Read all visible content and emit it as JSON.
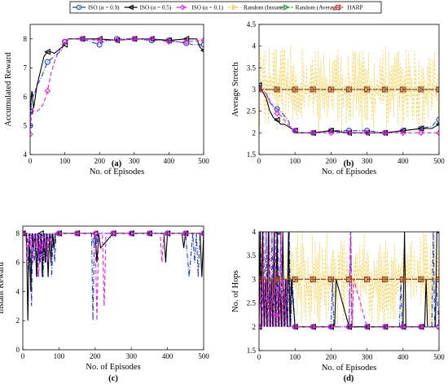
{
  "legend": {
    "entries": [
      {
        "label": "ISO (α = 0.9)",
        "color": "#1f3fd6",
        "marker": "circle",
        "dash": "6,2,1,2"
      },
      {
        "label": "ISO (α = 0.5)",
        "color": "#000000",
        "marker": "triangle-left",
        "dash": ""
      },
      {
        "label": "ISO (α = 0.1)",
        "color": "#e020e0",
        "marker": "diamond",
        "dash": "5,3"
      },
      {
        "label": "Random (Instant)",
        "color": "#f5d04a",
        "marker": "triangle-right",
        "dash": "3,2"
      },
      {
        "label": "Random (Average)",
        "color": "#1a9a2a",
        "marker": "triangle-right",
        "dash": "5,2"
      },
      {
        "label": "HARP",
        "color": "#e02020",
        "marker": "square",
        "dash": "2,2"
      }
    ]
  },
  "chart_data": [
    {
      "type": "line",
      "caption": "(a)",
      "xlabel": "No. of Episodes",
      "ylabel": "Accumulated Reward",
      "xlim": [
        0,
        500
      ],
      "ylim": [
        4,
        8.5
      ],
      "xticks": [
        0,
        100,
        200,
        300,
        400,
        500
      ],
      "yticks": [
        4,
        5,
        6,
        7,
        8
      ],
      "series": [
        {
          "x": [
            0,
            5,
            10,
            20,
            30,
            40,
            50,
            60,
            70,
            80,
            90,
            100,
            110,
            150,
            200,
            210,
            250,
            300,
            350,
            400,
            450,
            470,
            500
          ],
          "y": [
            5.0,
            6.2,
            6.0,
            6.4,
            6.6,
            6.9,
            7.2,
            7.3,
            7.4,
            7.5,
            7.6,
            7.9,
            8.0,
            8.0,
            7.8,
            7.9,
            8.0,
            8.0,
            7.95,
            7.95,
            7.85,
            7.8,
            7.8
          ]
        },
        {
          "x": [
            0,
            5,
            10,
            20,
            30,
            40,
            50,
            60,
            70,
            80,
            100,
            110,
            150,
            200,
            250,
            300,
            350,
            400,
            450,
            480,
            490,
            500
          ],
          "y": [
            5.5,
            6.2,
            5.6,
            6.4,
            6.9,
            7.4,
            7.55,
            7.55,
            7.5,
            7.6,
            7.8,
            8.0,
            8.0,
            8.0,
            7.95,
            8.0,
            8.0,
            7.95,
            8.0,
            8.0,
            7.7,
            7.6
          ]
        },
        {
          "x": [
            0,
            5,
            10,
            20,
            30,
            40,
            50,
            60,
            70,
            80,
            90,
            100,
            110,
            150,
            200,
            250,
            300,
            350,
            400,
            450,
            500
          ],
          "y": [
            4.7,
            5.6,
            5.5,
            5.5,
            5.6,
            5.8,
            6.2,
            6.8,
            7.2,
            7.5,
            7.7,
            7.9,
            8.0,
            8.0,
            7.95,
            7.95,
            8.0,
            8.0,
            7.9,
            7.9,
            7.95
          ]
        }
      ]
    },
    {
      "type": "line",
      "caption": "(b)",
      "xlabel": "No. of Episodes",
      "ylabel": "Average Stretch",
      "xlim": [
        0,
        500
      ],
      "ylim": [
        1.5,
        4.5
      ],
      "xticks": [
        0,
        100,
        200,
        300,
        400,
        500
      ],
      "yticks": [
        1.5,
        2,
        2.5,
        3,
        3.5,
        4,
        4.5
      ],
      "noise": {
        "series_index": 3,
        "min": 2.0,
        "max": 4.0,
        "center": 3.0,
        "samples": 250
      },
      "series": [
        {
          "x": [
            0,
            10,
            20,
            30,
            40,
            50,
            60,
            70,
            80,
            90,
            100,
            110,
            150,
            200,
            250,
            300,
            350,
            400,
            450,
            480,
            490,
            500
          ],
          "y": [
            3.05,
            3.0,
            2.9,
            2.7,
            2.6,
            2.55,
            2.5,
            2.4,
            2.3,
            2.1,
            2.05,
            2.0,
            2.0,
            2.05,
            2.05,
            2.05,
            2.0,
            2.05,
            2.1,
            2.15,
            2.25,
            2.3
          ]
        },
        {
          "x": [
            0,
            10,
            20,
            30,
            40,
            50,
            60,
            70,
            80,
            90,
            100,
            110,
            150,
            200,
            250,
            300,
            350,
            400,
            450,
            480,
            490,
            500
          ],
          "y": [
            3.1,
            2.95,
            2.8,
            2.5,
            2.35,
            2.3,
            2.2,
            2.2,
            2.15,
            2.1,
            2.05,
            2.0,
            2.0,
            2.05,
            2.0,
            2.0,
            2.0,
            2.05,
            2.1,
            2.1,
            2.15,
            2.2
          ]
        },
        {
          "x": [
            0,
            10,
            20,
            30,
            40,
            50,
            60,
            70,
            80,
            90,
            100,
            110,
            150,
            200,
            250,
            300,
            350,
            400,
            450,
            500
          ],
          "y": [
            3.0,
            2.95,
            2.9,
            2.75,
            2.6,
            2.45,
            2.4,
            2.3,
            2.2,
            2.1,
            2.05,
            2.0,
            2.0,
            2.0,
            2.0,
            2.0,
            2.0,
            2.0,
            2.0,
            2.0
          ]
        },
        {
          "x": [],
          "y": []
        },
        {
          "x": [
            0,
            500
          ],
          "y": [
            3.0,
            3.0
          ]
        },
        {
          "x": [
            0,
            500
          ],
          "y": [
            3.0,
            3.0
          ]
        }
      ]
    },
    {
      "type": "line",
      "caption": "(c)",
      "xlabel": "No. of Episodes",
      "ylabel": "Instant Reward",
      "xlim": [
        0,
        500
      ],
      "ylim": [
        0,
        8.5
      ],
      "xticks": [
        0,
        100,
        200,
        300,
        400,
        500
      ],
      "yticks": [
        0,
        2,
        4,
        6,
        8
      ],
      "series": [
        {
          "x": [
            0,
            12,
            16,
            20,
            24,
            28,
            32,
            36,
            40,
            44,
            48,
            52,
            56,
            60,
            64,
            68,
            72,
            76,
            80,
            84,
            88,
            92,
            96,
            100,
            150,
            190,
            194,
            198,
            202,
            206,
            210,
            250,
            300,
            350,
            400,
            450,
            460,
            470,
            475,
            480,
            485,
            490,
            500
          ],
          "y": [
            8,
            8,
            5,
            8,
            3,
            8,
            6,
            8,
            5,
            8,
            6,
            8,
            5,
            8,
            6,
            8,
            7,
            8,
            5,
            8,
            6,
            8,
            8,
            8,
            8,
            8,
            2,
            8,
            7,
            8,
            8,
            8,
            8,
            8,
            8,
            8,
            5,
            8,
            6,
            8,
            5,
            8,
            8
          ]
        },
        {
          "x": [
            0,
            10,
            14,
            18,
            22,
            26,
            30,
            34,
            38,
            42,
            46,
            50,
            54,
            58,
            62,
            66,
            70,
            74,
            78,
            82,
            86,
            90,
            100,
            150,
            200,
            205,
            210,
            215,
            250,
            300,
            350,
            390,
            395,
            400,
            440,
            445,
            450,
            490,
            495,
            500
          ],
          "y": [
            8,
            8,
            2,
            8,
            4,
            8,
            7,
            8,
            5,
            8,
            6,
            8,
            5,
            8,
            6,
            8,
            5,
            8,
            6,
            8,
            7,
            8,
            8,
            8,
            8,
            6,
            8,
            7,
            8,
            8,
            8,
            8,
            6,
            8,
            8,
            7,
            8,
            8,
            5,
            8
          ]
        },
        {
          "x": [
            0,
            8,
            12,
            16,
            20,
            24,
            28,
            32,
            36,
            40,
            44,
            48,
            52,
            56,
            60,
            64,
            68,
            72,
            76,
            80,
            84,
            100,
            150,
            200,
            205,
            210,
            220,
            225,
            230,
            250,
            300,
            350,
            380,
            385,
            390,
            450,
            500
          ],
          "y": [
            8,
            8,
            6,
            8,
            7,
            8,
            6,
            8,
            7,
            8,
            5,
            8,
            6,
            8,
            7,
            8,
            6,
            8,
            7,
            8,
            8,
            8,
            8,
            8,
            2,
            8,
            8,
            3,
            8,
            8,
            8,
            8,
            8,
            6,
            8,
            8,
            8
          ]
        }
      ]
    },
    {
      "type": "line",
      "caption": "(d)",
      "xlabel": "No. of Episodes",
      "ylabel": "No. of Hops",
      "xlim": [
        0,
        500
      ],
      "ylim": [
        1.5,
        4
      ],
      "xticks": [
        0,
        100,
        200,
        300,
        400,
        500
      ],
      "yticks": [
        1.5,
        2,
        2.5,
        3,
        3.5,
        4
      ],
      "noise": {
        "series_index": 3,
        "min": 2.0,
        "max": 4.0,
        "center": 3.0,
        "samples": 250
      },
      "series": [
        {
          "x": [
            0,
            4,
            8,
            12,
            16,
            20,
            24,
            28,
            32,
            36,
            40,
            44,
            48,
            52,
            56,
            60,
            64,
            68,
            72,
            76,
            80,
            84,
            88,
            92,
            100,
            150,
            200,
            204,
            208,
            250,
            254,
            258,
            300,
            350,
            390,
            394,
            398,
            450,
            480,
            484,
            488,
            492,
            500
          ],
          "y": [
            2,
            4,
            2,
            3,
            2,
            4,
            2,
            3,
            2,
            4,
            2,
            3,
            2,
            4,
            2,
            4,
            2,
            3,
            2,
            3,
            2,
            4,
            2,
            3,
            2,
            2,
            2,
            3,
            2,
            2,
            4,
            2,
            2,
            2,
            2,
            3,
            2,
            2,
            2,
            4,
            2,
            3,
            2
          ]
        },
        {
          "x": [
            0,
            3,
            6,
            10,
            14,
            18,
            22,
            26,
            30,
            34,
            38,
            42,
            46,
            50,
            54,
            58,
            62,
            66,
            70,
            74,
            78,
            82,
            86,
            90,
            100,
            150,
            200,
            210,
            214,
            250,
            300,
            350,
            400,
            404,
            408,
            450,
            460,
            464,
            468,
            490,
            494,
            500
          ],
          "y": [
            2,
            4,
            2,
            4,
            2,
            3,
            2,
            4,
            2,
            3,
            2,
            4,
            2,
            4,
            2,
            3,
            2,
            4,
            2,
            3,
            2,
            4,
            2,
            3,
            2,
            2,
            2,
            2,
            3,
            2,
            2,
            2,
            2,
            4,
            2,
            2,
            2,
            3,
            2,
            2,
            4,
            4
          ]
        },
        {
          "x": [
            0,
            5,
            9,
            13,
            17,
            21,
            25,
            29,
            33,
            37,
            41,
            45,
            49,
            53,
            57,
            61,
            65,
            69,
            73,
            77,
            81,
            100,
            150,
            200,
            250,
            255,
            259,
            263,
            300,
            350,
            400,
            450,
            500
          ],
          "y": [
            2,
            3,
            2,
            4,
            2,
            3,
            2,
            4,
            2,
            3,
            2,
            4,
            2,
            3,
            2,
            4,
            2,
            3,
            2,
            3,
            2,
            2,
            2,
            2,
            2,
            4,
            2,
            3,
            2,
            2,
            2,
            2,
            2
          ]
        },
        {
          "x": [],
          "y": []
        },
        {
          "x": [
            0,
            500
          ],
          "y": [
            3.0,
            3.0
          ]
        },
        {
          "x": [
            0,
            500
          ],
          "y": [
            3.0,
            3.0
          ]
        }
      ]
    }
  ]
}
